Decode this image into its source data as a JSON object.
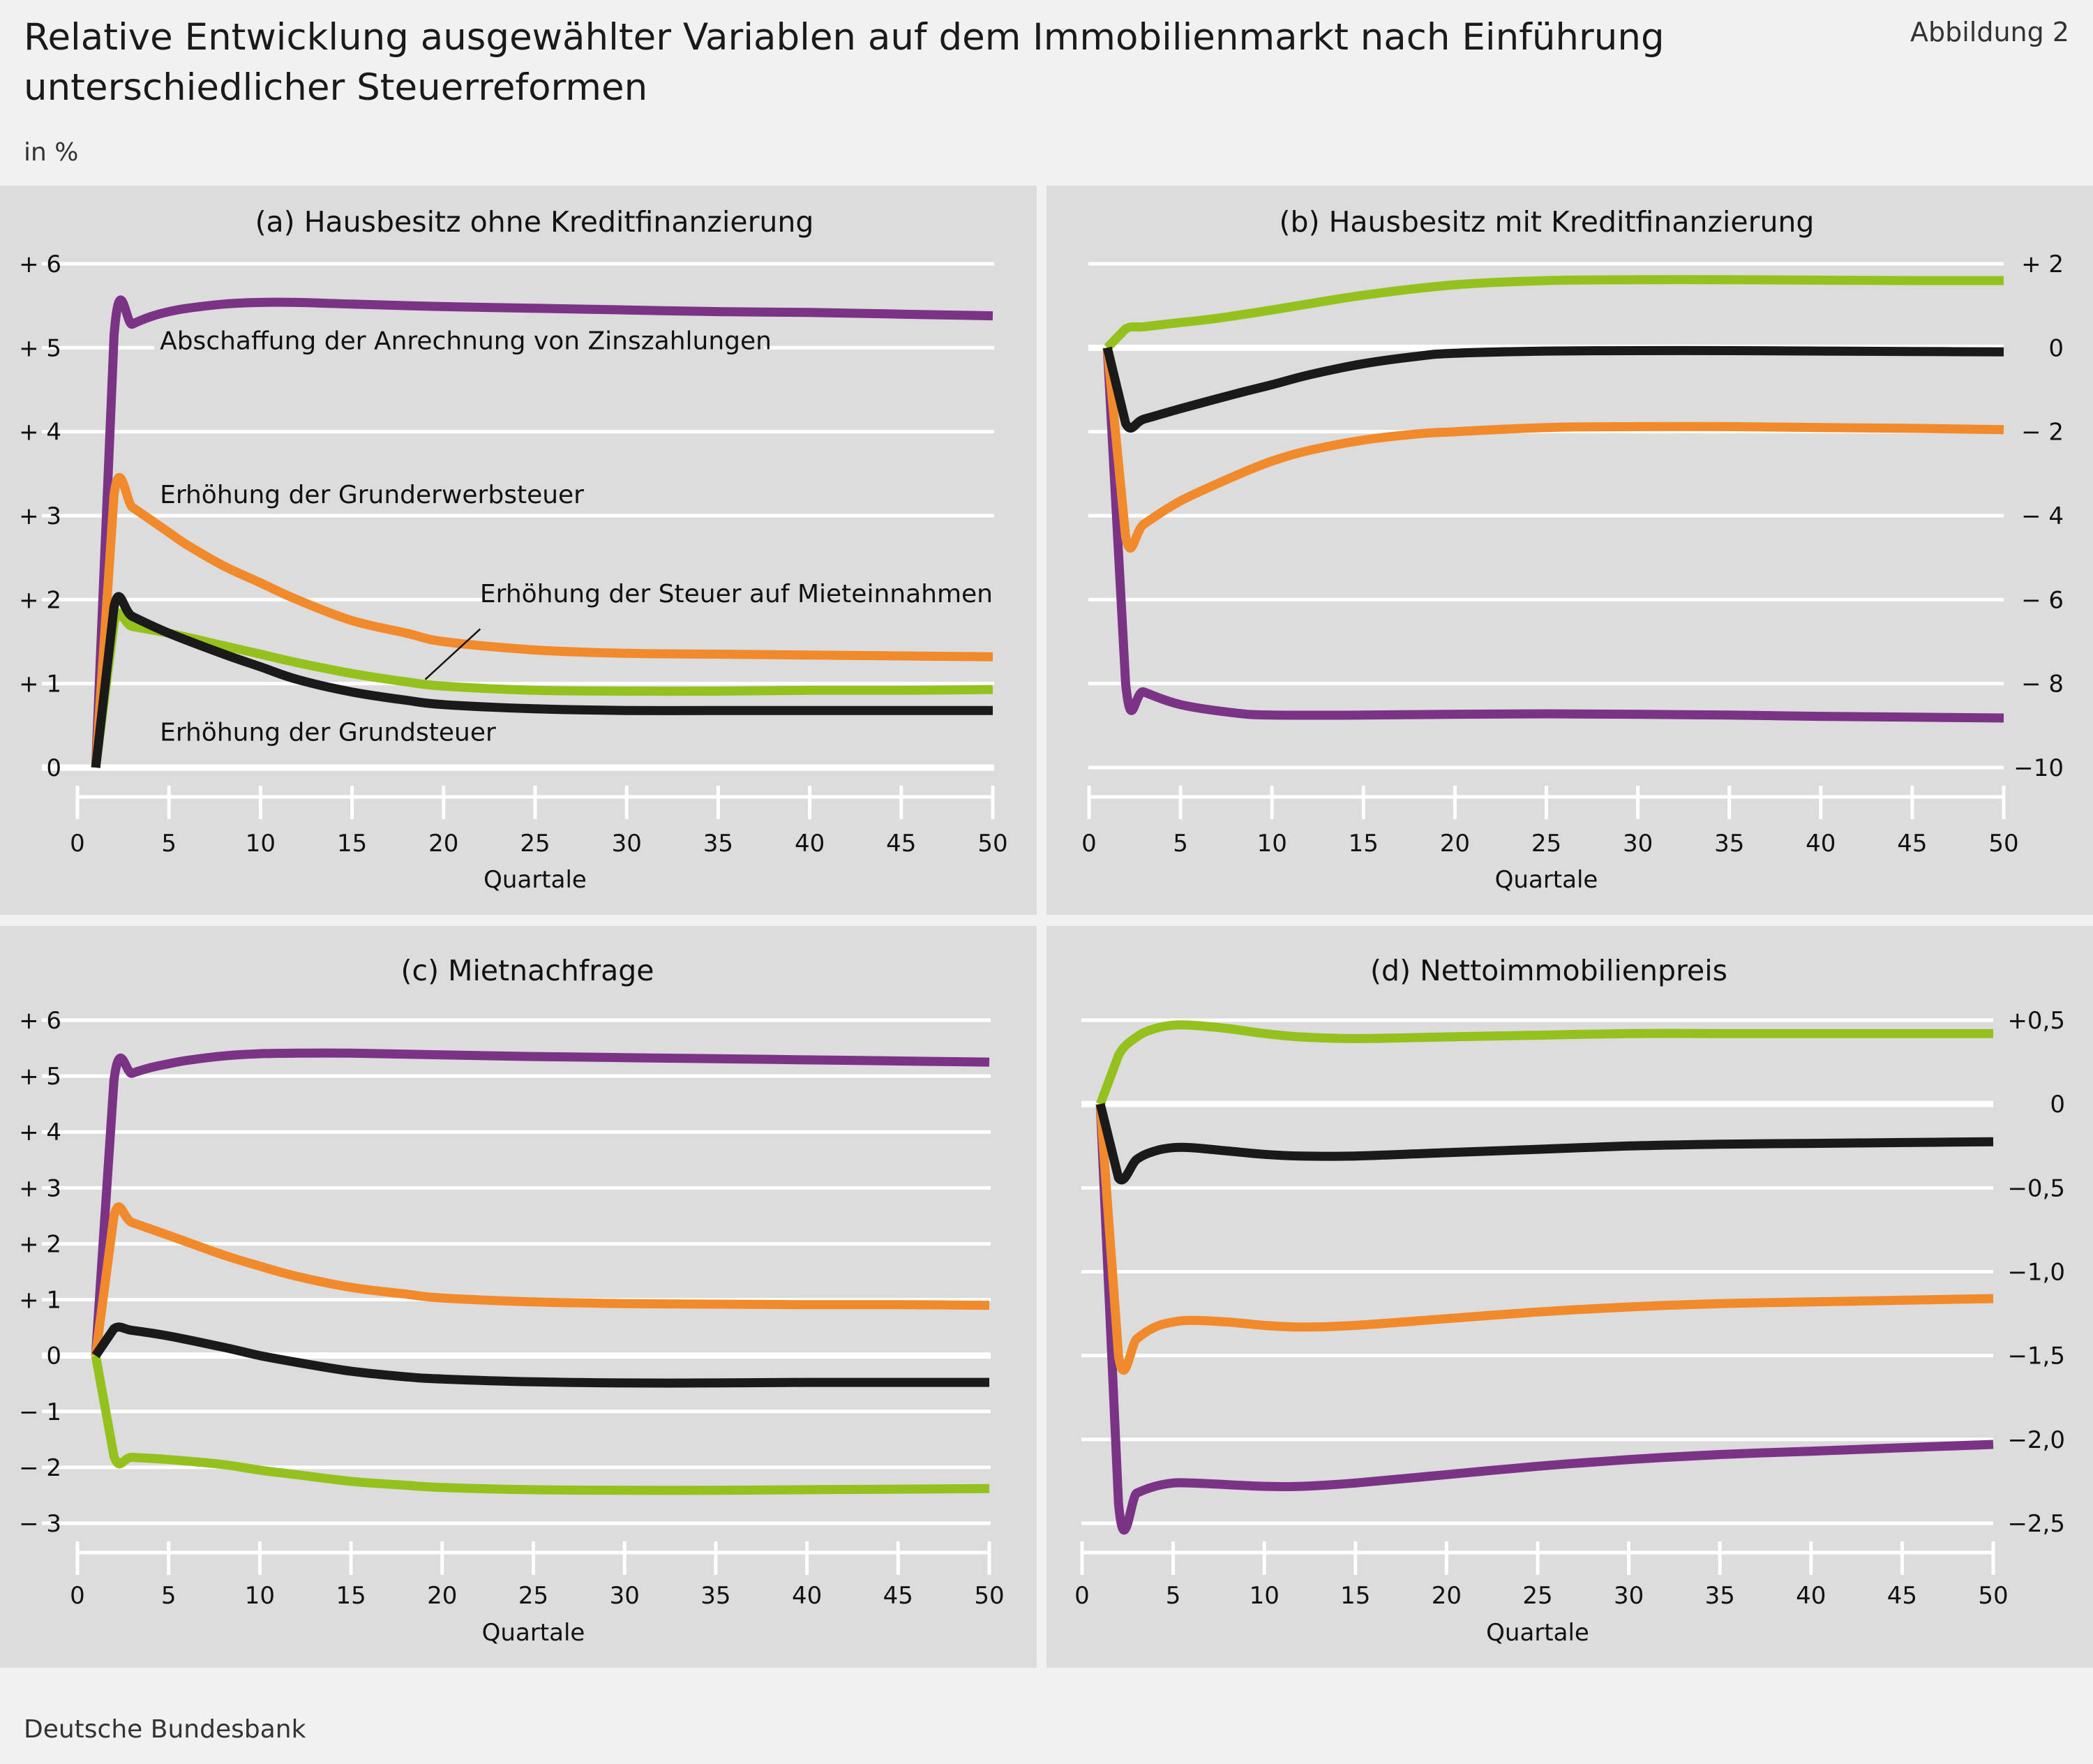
{
  "header": {
    "title": "Relative Entwicklung ausgewählter Variablen auf dem Immobilienmarkt nach Einführung unterschiedlicher Steuerreformen",
    "figure_label": "Abbildung 2",
    "unit": "in %"
  },
  "footer": {
    "source": "Deutsche Bundesbank"
  },
  "colors": {
    "background": "#f1f1f1",
    "panel": "#dcdcdc",
    "gridline": "#ffffff",
    "Abschaffung der Anrechnung von Zinszahlungen": "#7b3386",
    "Erhöhung der Grunderwerbsteuer": "#f08a2c",
    "Erhöhung der Steuer auf Mieteinnahmen": "#95c11f",
    "Erhöhung der Grundsteuer": "#1a1a1a"
  },
  "chart_data": [
    {
      "type": "line",
      "title": "(a) Hausbesitz ohne Kreditfinanzierung",
      "xlabel": "Quartale",
      "ylabel": "",
      "xlim": [
        0,
        50
      ],
      "xticks": [
        0,
        5,
        10,
        15,
        20,
        25,
        30,
        35,
        40,
        45,
        50
      ],
      "ylim": [
        0,
        6
      ],
      "yticks": [
        0,
        1,
        2,
        3,
        4,
        5,
        6
      ],
      "ytick_labels": [
        "0",
        "+ 1",
        "+ 2",
        "+ 3",
        "+ 4",
        "+ 5",
        "+ 6"
      ],
      "yaxis_side": "left",
      "grid": true,
      "series": [
        {
          "name": "Abschaffung der Anrechnung von Zinszahlungen",
          "color": "#7b3386",
          "x": [
            1,
            2,
            3,
            4,
            5,
            6,
            8,
            10,
            12,
            15,
            20,
            25,
            30,
            35,
            40,
            45,
            50
          ],
          "y": [
            0,
            5.15,
            5.28,
            5.37,
            5.43,
            5.47,
            5.52,
            5.54,
            5.54,
            5.52,
            5.49,
            5.47,
            5.45,
            5.43,
            5.42,
            5.4,
            5.38
          ]
        },
        {
          "name": "Erhöhung der Grunderwerbsteuer",
          "color": "#f08a2c",
          "x": [
            1,
            2,
            3,
            4,
            5,
            6,
            8,
            10,
            12,
            15,
            18,
            20,
            25,
            30,
            35,
            40,
            45,
            50
          ],
          "y": [
            0,
            3.25,
            3.1,
            2.95,
            2.8,
            2.65,
            2.4,
            2.2,
            2.0,
            1.75,
            1.6,
            1.5,
            1.4,
            1.36,
            1.35,
            1.34,
            1.33,
            1.32
          ]
        },
        {
          "name": "Erhöhung der Steuer auf Mieteinnahmen",
          "color": "#95c11f",
          "x": [
            1,
            2,
            3,
            5,
            8,
            10,
            12,
            15,
            18,
            20,
            25,
            30,
            35,
            40,
            45,
            50
          ],
          "y": [
            0,
            1.72,
            1.68,
            1.6,
            1.45,
            1.35,
            1.25,
            1.12,
            1.02,
            0.97,
            0.92,
            0.91,
            0.91,
            0.92,
            0.92,
            0.93
          ]
        },
        {
          "name": "Erhöhung der Grundsteuer",
          "color": "#1a1a1a",
          "x": [
            1,
            2,
            3,
            5,
            8,
            10,
            12,
            15,
            18,
            20,
            25,
            30,
            35,
            40,
            45,
            50
          ],
          "y": [
            0,
            1.92,
            1.8,
            1.6,
            1.35,
            1.2,
            1.05,
            0.9,
            0.8,
            0.75,
            0.7,
            0.68,
            0.68,
            0.68,
            0.68,
            0.68
          ]
        }
      ],
      "annotations": [
        {
          "text": "Abschaffung der Anrechnung von Zinszahlungen",
          "x": 4.5,
          "y": 4.98,
          "anchor": "start"
        },
        {
          "text": "Erhöhung der Grunderwerbsteuer",
          "x": 4.5,
          "y": 3.15,
          "anchor": "start"
        },
        {
          "text": "Erhöhung der Steuer auf Mieteinnahmen",
          "x": 50,
          "y": 1.97,
          "anchor": "end",
          "leader": [
            [
              22,
              1.65
            ],
            [
              19,
              1.05
            ]
          ]
        },
        {
          "text": "Erhöhung der Grundsteuer",
          "x": 4.5,
          "y": 0.32,
          "anchor": "start"
        }
      ]
    },
    {
      "type": "line",
      "title": "(b) Hausbesitz mit Kreditfinanzierung",
      "xlabel": "Quartale",
      "ylabel": "",
      "xlim": [
        0,
        50
      ],
      "xticks": [
        0,
        5,
        10,
        15,
        20,
        25,
        30,
        35,
        40,
        45,
        50
      ],
      "ylim": [
        -10,
        2
      ],
      "yticks": [
        -10,
        -8,
        -6,
        -4,
        -2,
        0,
        2
      ],
      "ytick_labels": [
        "−10",
        "− 8",
        "− 6",
        "− 4",
        "− 2",
        "0",
        "+ 2"
      ],
      "yaxis_side": "right",
      "grid": true,
      "series": [
        {
          "name": "Abschaffung der Anrechnung von Zinszahlungen",
          "color": "#7b3386",
          "x": [
            1,
            2,
            3,
            5,
            8,
            10,
            15,
            20,
            25,
            30,
            35,
            40,
            45,
            50
          ],
          "y": [
            0,
            -8.0,
            -8.2,
            -8.5,
            -8.7,
            -8.75,
            -8.75,
            -8.73,
            -8.72,
            -8.73,
            -8.75,
            -8.78,
            -8.8,
            -8.82
          ]
        },
        {
          "name": "Erhöhung der Grunderwerbsteuer",
          "color": "#f08a2c",
          "x": [
            1,
            2,
            3,
            5,
            8,
            10,
            12,
            15,
            18,
            20,
            25,
            30,
            35,
            40,
            45,
            50
          ],
          "y": [
            0,
            -4.5,
            -4.2,
            -3.65,
            -3.05,
            -2.7,
            -2.45,
            -2.2,
            -2.05,
            -2.0,
            -1.9,
            -1.88,
            -1.88,
            -1.9,
            -1.92,
            -1.95
          ]
        },
        {
          "name": "Erhöhung der Steuer auf Mieteinnahmen",
          "color": "#95c11f",
          "x": [
            1,
            2,
            3,
            5,
            7,
            10,
            15,
            20,
            25,
            30,
            35,
            40,
            45,
            50
          ],
          "y": [
            0,
            0.45,
            0.5,
            0.6,
            0.7,
            0.9,
            1.25,
            1.5,
            1.6,
            1.62,
            1.62,
            1.61,
            1.6,
            1.6
          ]
        },
        {
          "name": "Erhöhung der Grundsteuer",
          "color": "#1a1a1a",
          "x": [
            1,
            2,
            3,
            5,
            8,
            10,
            12,
            15,
            18,
            20,
            25,
            30,
            35,
            40,
            45,
            50
          ],
          "y": [
            0,
            -1.8,
            -1.7,
            -1.45,
            -1.1,
            -0.88,
            -0.65,
            -0.38,
            -0.2,
            -0.13,
            -0.08,
            -0.07,
            -0.07,
            -0.08,
            -0.09,
            -0.1
          ]
        }
      ]
    },
    {
      "type": "line",
      "title": "(c) Mietnachfrage",
      "xlabel": "Quartale",
      "ylabel": "",
      "xlim": [
        0,
        50
      ],
      "xticks": [
        0,
        5,
        10,
        15,
        20,
        25,
        30,
        35,
        40,
        45,
        50
      ],
      "ylim": [
        -3,
        6
      ],
      "yticks": [
        -3,
        -2,
        -1,
        0,
        1,
        2,
        3,
        4,
        5,
        6
      ],
      "ytick_labels": [
        "− 3",
        "− 2",
        "− 1",
        "0",
        "+ 1",
        "+ 2",
        "+ 3",
        "+ 4",
        "+ 5",
        "+ 6"
      ],
      "yaxis_side": "left",
      "grid": true,
      "series": [
        {
          "name": "Abschaffung der Anrechnung von Zinszahlungen",
          "color": "#7b3386",
          "x": [
            1,
            2,
            3,
            4,
            5,
            6,
            8,
            10,
            12,
            15,
            20,
            25,
            30,
            35,
            40,
            45,
            50
          ],
          "y": [
            0,
            4.92,
            5.05,
            5.15,
            5.22,
            5.28,
            5.36,
            5.4,
            5.41,
            5.41,
            5.38,
            5.35,
            5.33,
            5.31,
            5.29,
            5.27,
            5.25
          ]
        },
        {
          "name": "Erhöhung der Grunderwerbsteuer",
          "color": "#f08a2c",
          "x": [
            1,
            2,
            3,
            5,
            8,
            10,
            12,
            15,
            18,
            20,
            25,
            30,
            35,
            40,
            45,
            50
          ],
          "y": [
            0,
            2.5,
            2.38,
            2.15,
            1.8,
            1.6,
            1.42,
            1.22,
            1.1,
            1.03,
            0.96,
            0.93,
            0.92,
            0.91,
            0.91,
            0.9
          ]
        },
        {
          "name": "Erhöhung der Steuer auf Mieteinnahmen",
          "color": "#95c11f",
          "x": [
            1,
            2,
            3,
            5,
            8,
            10,
            12,
            15,
            18,
            20,
            25,
            30,
            35,
            40,
            45,
            50
          ],
          "y": [
            0,
            -1.8,
            -1.82,
            -1.86,
            -1.95,
            -2.05,
            -2.13,
            -2.25,
            -2.32,
            -2.36,
            -2.4,
            -2.41,
            -2.41,
            -2.4,
            -2.39,
            -2.38
          ]
        },
        {
          "name": "Erhöhung der Grundsteuer",
          "color": "#1a1a1a",
          "x": [
            1,
            2,
            3,
            5,
            8,
            10,
            12,
            15,
            18,
            20,
            25,
            30,
            35,
            40,
            45,
            50
          ],
          "y": [
            0,
            0.48,
            0.45,
            0.35,
            0.15,
            0.0,
            -0.12,
            -0.28,
            -0.38,
            -0.42,
            -0.47,
            -0.49,
            -0.49,
            -0.48,
            -0.48,
            -0.48
          ]
        }
      ]
    },
    {
      "type": "line",
      "title": "(d) Nettoimmobilienpreis",
      "xlabel": "Quartale",
      "ylabel": "",
      "xlim": [
        0,
        50
      ],
      "xticks": [
        0,
        5,
        10,
        15,
        20,
        25,
        30,
        35,
        40,
        45,
        50
      ],
      "ylim": [
        -2.5,
        0.5
      ],
      "yticks": [
        -2.5,
        -2.0,
        -1.5,
        -1.0,
        -0.5,
        0,
        0.5
      ],
      "ytick_labels": [
        "−2,5",
        "−2,0",
        "−1,5",
        "−1,0",
        "−0,5",
        "0",
        "+0,5"
      ],
      "yaxis_side": "right",
      "grid": true,
      "series": [
        {
          "name": "Abschaffung der Anrechnung von Zinszahlungen",
          "color": "#7b3386",
          "x": [
            1,
            2,
            3,
            4,
            5,
            6,
            8,
            10,
            12,
            15,
            20,
            25,
            30,
            35,
            40,
            45,
            50
          ],
          "y": [
            0,
            -2.38,
            -2.32,
            -2.28,
            -2.26,
            -2.26,
            -2.27,
            -2.28,
            -2.28,
            -2.26,
            -2.21,
            -2.16,
            -2.12,
            -2.09,
            -2.07,
            -2.05,
            -2.03
          ]
        },
        {
          "name": "Erhöhung der Grunderwerbsteuer",
          "color": "#f08a2c",
          "x": [
            1,
            2,
            3,
            4,
            5,
            6,
            8,
            10,
            12,
            15,
            20,
            25,
            30,
            35,
            40,
            45,
            50
          ],
          "y": [
            0,
            -1.5,
            -1.4,
            -1.33,
            -1.3,
            -1.29,
            -1.3,
            -1.32,
            -1.33,
            -1.32,
            -1.28,
            -1.24,
            -1.21,
            -1.19,
            -1.18,
            -1.17,
            -1.16
          ]
        },
        {
          "name": "Erhöhung der Steuer auf Mieteinnahmen",
          "color": "#95c11f",
          "x": [
            1,
            2,
            3,
            4,
            5,
            6,
            8,
            10,
            12,
            15,
            20,
            25,
            30,
            35,
            40,
            45,
            50
          ],
          "y": [
            0,
            0.29,
            0.4,
            0.45,
            0.47,
            0.47,
            0.45,
            0.42,
            0.4,
            0.39,
            0.4,
            0.41,
            0.42,
            0.42,
            0.42,
            0.42,
            0.42
          ]
        },
        {
          "name": "Erhöhung der Grundsteuer",
          "color": "#1a1a1a",
          "x": [
            1,
            2,
            3,
            4,
            5,
            6,
            8,
            10,
            12,
            15,
            20,
            25,
            30,
            35,
            40,
            45,
            50
          ],
          "y": [
            0,
            -0.44,
            -0.33,
            -0.28,
            -0.26,
            -0.26,
            -0.28,
            -0.3,
            -0.31,
            -0.31,
            -0.29,
            -0.27,
            -0.25,
            -0.24,
            -0.235,
            -0.23,
            -0.225
          ]
        }
      ]
    }
  ]
}
